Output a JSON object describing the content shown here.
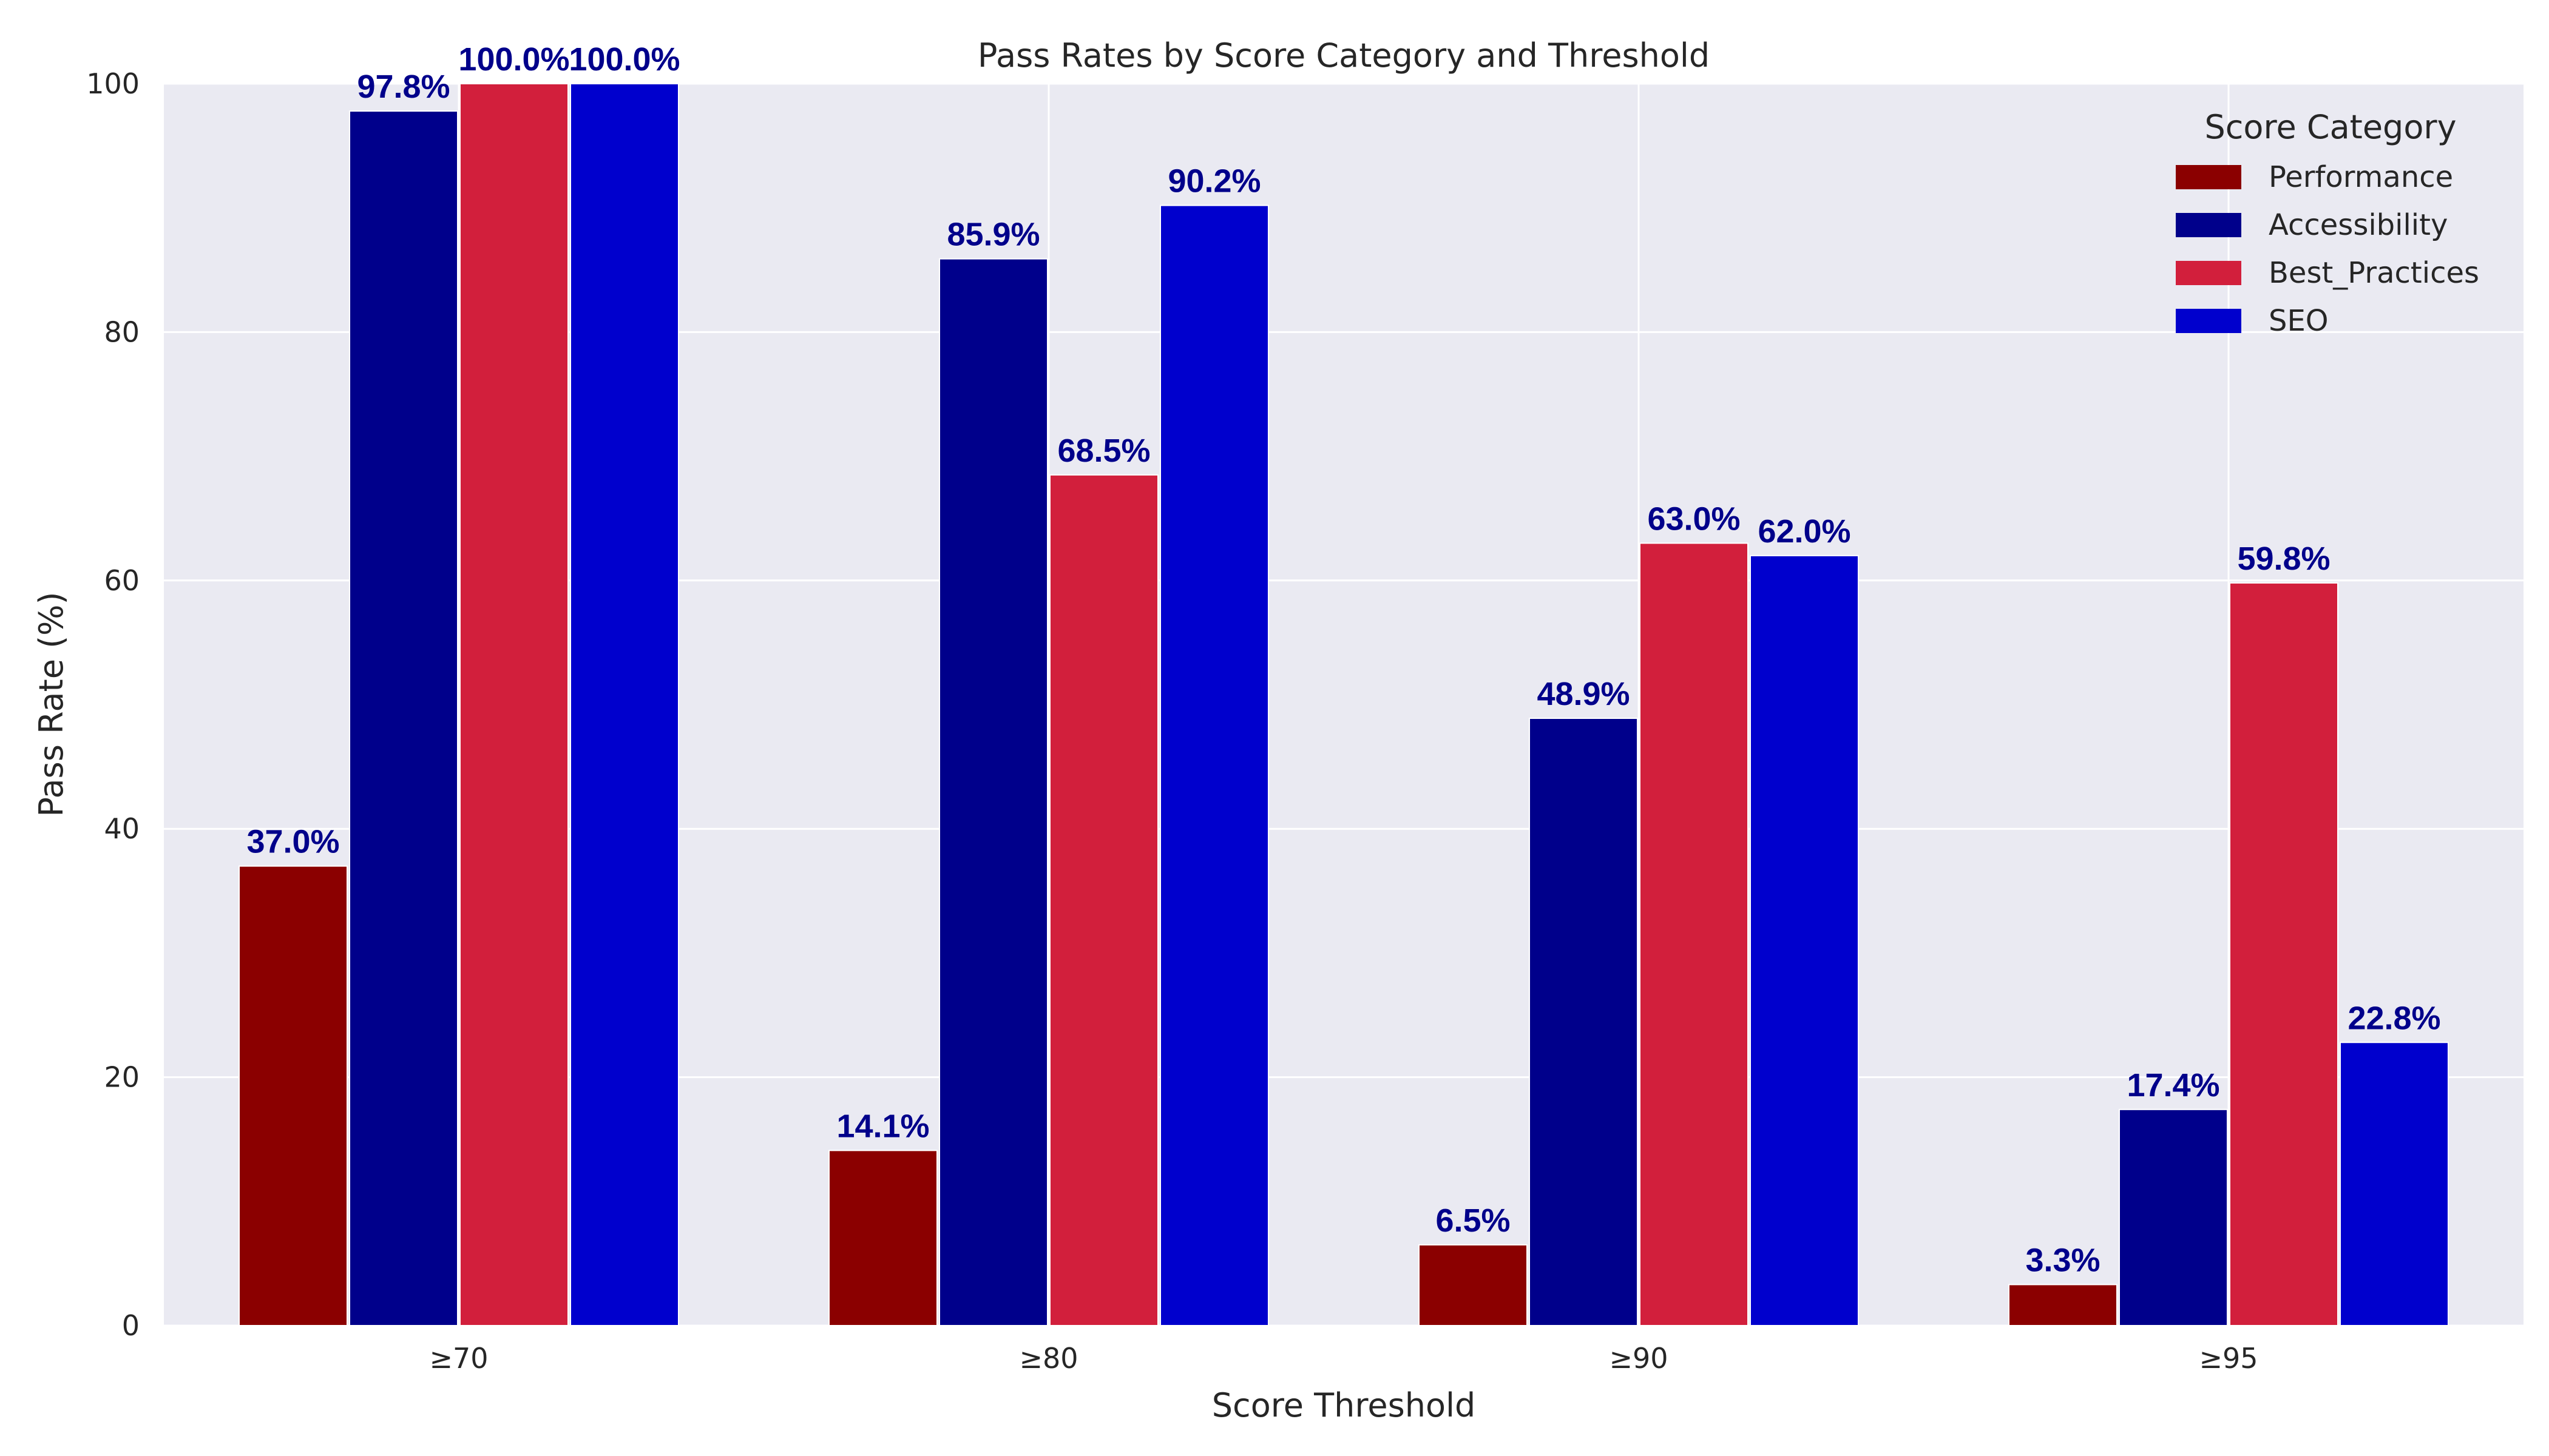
{
  "chart_data": {
    "type": "bar",
    "title": "Pass Rates by Score Category and Threshold",
    "xlabel": "Score Threshold",
    "ylabel": "Pass Rate (%)",
    "categories": [
      "≥70",
      "≥80",
      "≥90",
      "≥95"
    ],
    "ylim": [
      0,
      100
    ],
    "yticks": [
      0,
      20,
      40,
      60,
      80,
      100
    ],
    "grid": true,
    "legend_title": "Score Category",
    "legend_position": "top-right",
    "label_color": "#00008b",
    "series": [
      {
        "name": "Performance",
        "color": "#8b0000",
        "values": [
          37.0,
          14.1,
          6.5,
          3.3
        ],
        "labels": [
          "37.0%",
          "14.1%",
          "6.5%",
          "3.3%"
        ]
      },
      {
        "name": "Accessibility",
        "color": "#00008b",
        "values": [
          97.8,
          85.9,
          48.9,
          17.4
        ],
        "labels": [
          "97.8%",
          "85.9%",
          "48.9%",
          "17.4%"
        ]
      },
      {
        "name": "Best_Practices",
        "color": "#d21f3c",
        "values": [
          100.0,
          68.5,
          63.0,
          59.8
        ],
        "labels": [
          "100.0%",
          "68.5%",
          "63.0%",
          "59.8%"
        ]
      },
      {
        "name": "SEO",
        "color": "#0000cd",
        "values": [
          100.0,
          90.2,
          62.0,
          22.8
        ],
        "labels": [
          "100.0%",
          "90.2%",
          "62.0%",
          "22.8%"
        ]
      }
    ]
  }
}
